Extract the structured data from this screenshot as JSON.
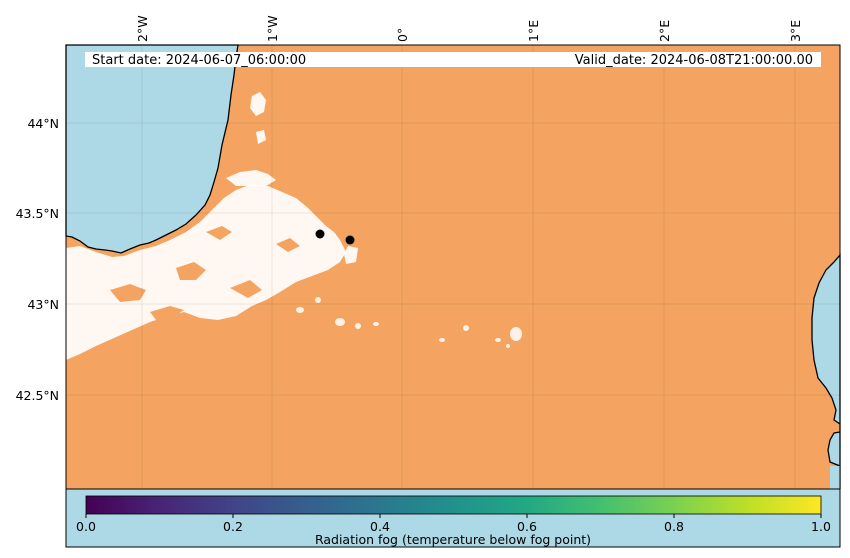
{
  "map": {
    "header": {
      "start_date": "Start date: 2024-06-07_06:00:00",
      "valid_date": "Valid_date: 2024-06-08T21:00:00.00"
    },
    "lon_ticks": [
      "2°W",
      "1°W",
      "0°",
      "1°E",
      "2°E",
      "3°E"
    ],
    "lat_ticks": [
      "44°N",
      "43.5°N",
      "43°N",
      "42.5°N"
    ],
    "markers": [
      {
        "lon": -0.62,
        "lat": 43.39
      },
      {
        "lon": -0.4,
        "lat": 43.36
      }
    ],
    "colors": {
      "land": "#f4a460",
      "sea": "#add8e6",
      "fog": "#ffffff",
      "coastline": "#000000",
      "marker": "#000000"
    }
  },
  "colorbar": {
    "label": "Radiation fog (temperature below fog point)",
    "ticks": [
      "0.0",
      "0.2",
      "0.4",
      "0.6",
      "0.8",
      "1.0"
    ],
    "colormap": "viridis",
    "range": [
      0.0,
      1.0
    ]
  }
}
